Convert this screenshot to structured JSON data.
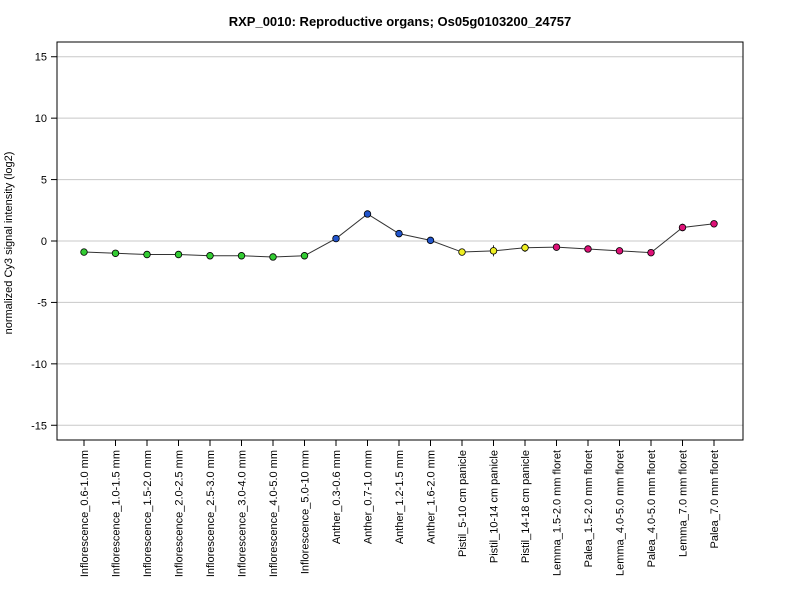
{
  "chart_data": {
    "type": "line",
    "title": "RXP_0010: Reproductive organs; Os05g0103200_24757",
    "xlabel": "",
    "ylabel": "normalized Cy3 signal intensity (log2)",
    "ylim": [
      -16.2,
      16.2
    ],
    "yticks": [
      -15,
      -10,
      -5,
      0,
      5,
      10,
      15
    ],
    "grid": true,
    "categories": [
      "Inflorescence_0.6-1.0 mm",
      "Inflorescence_1.0-1.5 mm",
      "Inflorescence_1.5-2.0 mm",
      "Inflorescence_2.0-2.5 mm",
      "Inflorescence_2.5-3.0 mm",
      "Inflorescence_3.0-4.0 mm",
      "Inflorescence_4.0-5.0 mm",
      "Inflorescence_5.0-10 mm",
      "Anther_0.3-0.6 mm",
      "Anther_0.7-1.0 mm",
      "Anther_1.2-1.5 mm",
      "Anther_1.6-2.0 mm",
      "Pistil_5-10 cm panicle",
      "Pistil_10-14 cm panicle",
      "Pistil_14-18 cm panicle",
      "Lemma_1.5-2.0 mm floret",
      "Palea_1.5-2.0 mm floret",
      "Lemma_4.0-5.0 mm floret",
      "Palea_4.0-5.0 mm floret",
      "Lemma_7.0 mm floret",
      "Palea_7.0 mm floret"
    ],
    "values": [
      -0.9,
      -1.0,
      -1.1,
      -1.1,
      -1.2,
      -1.2,
      -1.3,
      -1.2,
      0.2,
      2.2,
      0.6,
      0.05,
      -0.9,
      -0.8,
      -0.55,
      -0.5,
      -0.65,
      -0.8,
      -0.95,
      1.1,
      1.4
    ],
    "errors": [
      0.1,
      0.15,
      0.15,
      0.12,
      0.25,
      0.15,
      0.1,
      0.25,
      0.1,
      0.1,
      0.25,
      0.1,
      0.15,
      0.45,
      0.35,
      0.1,
      0.1,
      0.1,
      0.1,
      0.3,
      0.15
    ],
    "point_colors": [
      "#33cc33",
      "#33cc33",
      "#33cc33",
      "#33cc33",
      "#33cc33",
      "#33cc33",
      "#33cc33",
      "#33cc33",
      "#2255cc",
      "#2255cc",
      "#2255cc",
      "#2255cc",
      "#eeee22",
      "#eeee22",
      "#eeee22",
      "#dd1177",
      "#dd1177",
      "#dd1177",
      "#dd1177",
      "#dd1177",
      "#dd1177"
    ],
    "line_color": "#333333",
    "grid_color": "#c8c8c8"
  }
}
